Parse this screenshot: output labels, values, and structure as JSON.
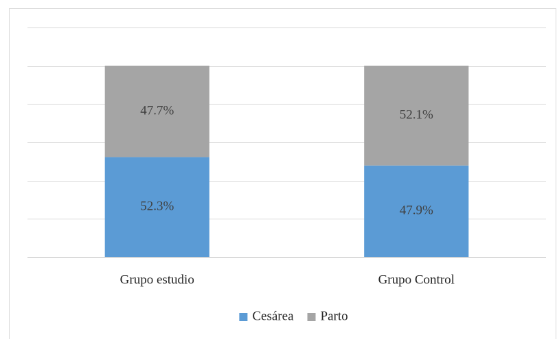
{
  "chart_data": {
    "type": "stacked_bar",
    "categories": [
      "Grupo estudio",
      "Grupo Control"
    ],
    "series": [
      {
        "name": "Cesárea",
        "color": "#5b9bd5",
        "values": [
          52.3,
          47.9
        ],
        "value_labels": [
          "52.3%",
          "47.9%"
        ]
      },
      {
        "name": "Parto",
        "color": "#a5a5a5",
        "values": [
          47.7,
          52.1
        ],
        "value_labels": [
          "47.7%",
          "52.1%"
        ]
      }
    ],
    "ylim": [
      0,
      120
    ],
    "yticks": [
      0,
      20,
      40,
      60,
      80,
      100,
      120
    ],
    "grid": true,
    "legend": "bottom"
  }
}
